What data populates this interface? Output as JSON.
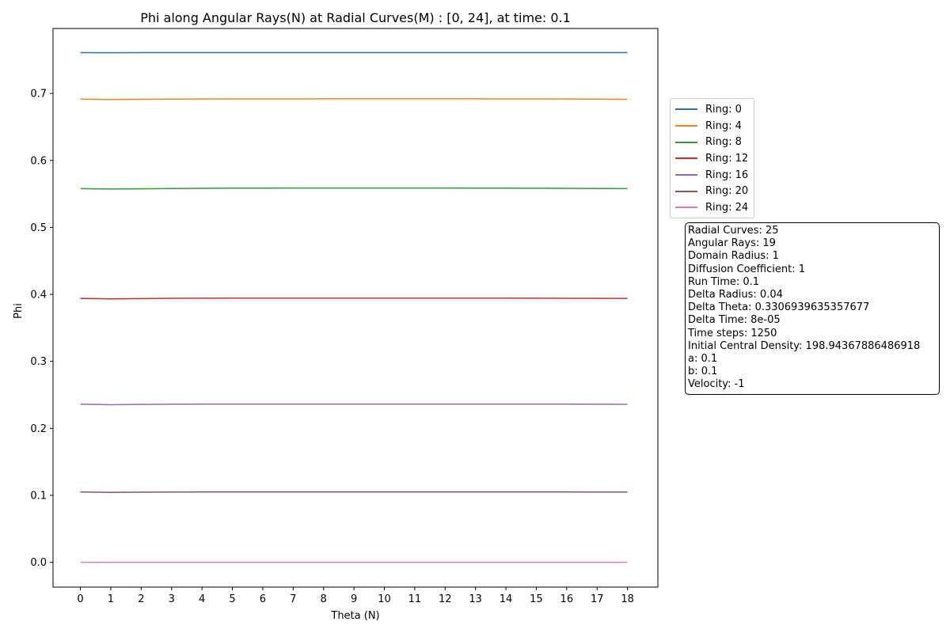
{
  "chart_data": {
    "type": "line",
    "title": "Phi along Angular Rays(N) at Radial Curves(M) : [0, 24], at time: 0.1",
    "xlabel": "Theta (N)",
    "ylabel": "Phi",
    "xlim": [
      -0.9,
      19.0
    ],
    "ylim": [
      -0.037,
      0.797
    ],
    "x_ticks": [
      0,
      1,
      2,
      3,
      4,
      5,
      6,
      7,
      8,
      9,
      10,
      11,
      12,
      13,
      14,
      15,
      16,
      17,
      18
    ],
    "y_ticks": [
      0.0,
      0.1,
      0.2,
      0.3,
      0.4,
      0.5,
      0.6,
      0.7
    ],
    "y_tick_labels": [
      "0.0",
      "0.1",
      "0.2",
      "0.3",
      "0.4",
      "0.5",
      "0.6",
      "0.7"
    ],
    "grid": false,
    "legend_position": "right-outside-top",
    "x": [
      0,
      1,
      2,
      3,
      4,
      5,
      6,
      7,
      8,
      9,
      10,
      11,
      12,
      13,
      14,
      15,
      16,
      17,
      18
    ],
    "series": [
      {
        "name": "Ring: 0",
        "color": "#1f77b4",
        "values": [
          0.761,
          0.7608,
          0.7609,
          0.7609,
          0.761,
          0.761,
          0.761,
          0.761,
          0.761,
          0.761,
          0.761,
          0.761,
          0.761,
          0.761,
          0.761,
          0.761,
          0.7609,
          0.7609,
          0.7609
        ]
      },
      {
        "name": "Ring: 4",
        "color": "#ff7f0e",
        "values": [
          0.6915,
          0.691,
          0.6913,
          0.6915,
          0.6917,
          0.6918,
          0.6919,
          0.6919,
          0.692,
          0.692,
          0.692,
          0.692,
          0.692,
          0.692,
          0.6919,
          0.6918,
          0.6917,
          0.6915,
          0.6913
        ]
      },
      {
        "name": "Ring: 8",
        "color": "#2ca02c",
        "values": [
          0.558,
          0.5573,
          0.5577,
          0.5581,
          0.5584,
          0.5586,
          0.5587,
          0.5588,
          0.5588,
          0.5588,
          0.5588,
          0.5588,
          0.5588,
          0.5587,
          0.5586,
          0.5585,
          0.5583,
          0.5581,
          0.558
        ]
      },
      {
        "name": "Ring: 12",
        "color": "#d62728",
        "values": [
          0.394,
          0.3933,
          0.3938,
          0.3941,
          0.3943,
          0.3944,
          0.3945,
          0.3945,
          0.3945,
          0.3945,
          0.3945,
          0.3945,
          0.3945,
          0.3945,
          0.3944,
          0.3943,
          0.3942,
          0.3941,
          0.394
        ]
      },
      {
        "name": "Ring: 16",
        "color": "#9467bd",
        "values": [
          0.236,
          0.2353,
          0.2357,
          0.236,
          0.2361,
          0.2362,
          0.2362,
          0.2362,
          0.2362,
          0.2362,
          0.2362,
          0.2362,
          0.2362,
          0.2362,
          0.2362,
          0.2361,
          0.2361,
          0.236,
          0.2359
        ]
      },
      {
        "name": "Ring: 20",
        "color": "#8c564b",
        "values": [
          0.105,
          0.1045,
          0.1047,
          0.1049,
          0.105,
          0.105,
          0.1051,
          0.1051,
          0.1051,
          0.1051,
          0.1051,
          0.1051,
          0.1051,
          0.1051,
          0.105,
          0.105,
          0.105,
          0.1049,
          0.1049
        ]
      },
      {
        "name": "Ring: 24",
        "color": "#e377c2",
        "values": [
          0,
          0,
          0,
          0,
          0,
          0,
          0,
          0,
          0,
          0,
          0,
          0,
          0,
          0,
          0,
          0,
          0,
          0,
          0
        ]
      }
    ]
  },
  "info_box": {
    "lines": [
      "Radial Curves: 25",
      "Angular Rays: 19",
      "Domain Radius: 1",
      "Diffusion Coefficient: 1",
      "Run Time: 0.1",
      "Delta Radius: 0.04",
      "Delta Theta: 0.3306939635357677",
      "Delta Time: 8e-05",
      "Time steps: 1250",
      "Initial Central Density: 198.94367886486918",
      "a: 0.1",
      "b: 0.1",
      "Velocity: -1"
    ]
  }
}
